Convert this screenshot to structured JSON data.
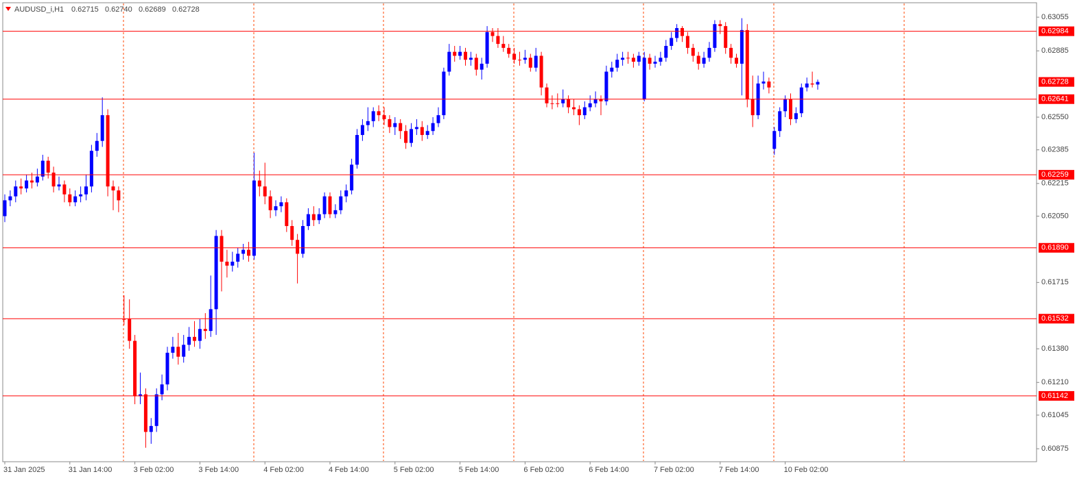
{
  "header": {
    "symbol": "AUDUSD_i,H1",
    "ohlc": [
      "0.62715",
      "0.62740",
      "0.62689",
      "0.62728"
    ]
  },
  "chart_data": {
    "type": "candlestick",
    "up_color": "#0000ff",
    "down_color": "#ff0000",
    "ylim": [
      0.60813,
      0.63128
    ],
    "yticks": [
      0.63055,
      0.62885,
      {
        "value": 0.6255,
        "label": "0.62550"
      },
      0.62385,
      0.62215,
      {
        "value": 0.6205,
        "label": "0.62050"
      },
      0.61715,
      {
        "value": 0.6138,
        "label": "0.61380"
      },
      {
        "value": 0.6121,
        "label": "0.61210"
      },
      0.61045,
      0.60875
    ],
    "levels": [
      0.62984,
      0.62641,
      0.62259,
      {
        "value": 0.6189,
        "label": "0.61890"
      },
      0.61532,
      0.61142
    ],
    "current_price": 0.62728,
    "categories": [
      "31 Jan 2025",
      null,
      null,
      null,
      null,
      null,
      null,
      null,
      null,
      null,
      null,
      null,
      "31 Jan 14:00",
      null,
      null,
      null,
      null,
      null,
      null,
      null,
      null,
      null,
      null,
      null,
      "3 Feb 02:00",
      null,
      null,
      null,
      null,
      null,
      null,
      null,
      null,
      null,
      null,
      null,
      "3 Feb 14:00",
      null,
      null,
      null,
      null,
      null,
      null,
      null,
      null,
      null,
      null,
      null,
      "4 Feb 02:00",
      null,
      null,
      null,
      null,
      null,
      null,
      null,
      null,
      null,
      null,
      null,
      "4 Feb 14:00",
      null,
      null,
      null,
      null,
      null,
      null,
      null,
      null,
      null,
      null,
      null,
      "5 Feb 02:00",
      null,
      null,
      null,
      null,
      null,
      null,
      null,
      null,
      null,
      null,
      null,
      "5 Feb 14:00",
      null,
      null,
      null,
      null,
      null,
      null,
      null,
      null,
      null,
      null,
      null,
      "6 Feb 02:00",
      null,
      null,
      null,
      null,
      null,
      null,
      null,
      null,
      null,
      null,
      null,
      "6 Feb 14:00",
      null,
      null,
      null,
      null,
      null,
      null,
      null,
      null,
      null,
      null,
      null,
      "7 Feb 02:00",
      null,
      null,
      null,
      null,
      null,
      null,
      null,
      null,
      null,
      null,
      null,
      "7 Feb 14:00",
      null,
      null,
      null,
      null,
      null,
      null,
      null,
      null,
      null,
      null,
      null,
      "10 Feb 02:00",
      null,
      null,
      null,
      null,
      null,
      null
    ],
    "candles": [
      [
        0.6205,
        0.6216,
        0.6202,
        0.6213
      ],
      [
        0.6213,
        0.6218,
        0.621,
        0.6215
      ],
      [
        0.6215,
        0.6223,
        0.6212,
        0.622
      ],
      [
        0.622,
        0.6224,
        0.6216,
        0.6219
      ],
      [
        0.6219,
        0.6226,
        0.6217,
        0.6223
      ],
      [
        0.6223,
        0.6227,
        0.6219,
        0.6222
      ],
      [
        0.6222,
        0.6229,
        0.622,
        0.6225
      ],
      [
        0.6225,
        0.6236,
        0.6223,
        0.6233
      ],
      [
        0.6233,
        0.6235,
        0.6224,
        0.6227
      ],
      [
        0.6227,
        0.623,
        0.6217,
        0.622
      ],
      [
        0.622,
        0.6225,
        0.6218,
        0.6221
      ],
      [
        0.6221,
        0.6223,
        0.6212,
        0.6216
      ],
      [
        0.6216,
        0.6219,
        0.621,
        0.6212
      ],
      [
        0.6212,
        0.6218,
        0.621,
        0.6215
      ],
      [
        0.6215,
        0.622,
        0.6212,
        0.6216
      ],
      [
        0.6216,
        0.6226,
        0.6213,
        0.622
      ],
      [
        0.622,
        0.6241,
        0.6217,
        0.6238
      ],
      [
        0.6238,
        0.6247,
        0.6235,
        0.6243
      ],
      [
        0.6243,
        0.6265,
        0.624,
        0.6256
      ],
      [
        0.6256,
        0.6259,
        0.6215,
        0.622
      ],
      [
        0.622,
        0.6223,
        0.6208,
        0.6218
      ],
      [
        0.6218,
        0.622,
        0.6207,
        0.6213
      ],
      [
        0.6153,
        0.6165,
        0.615,
        0.6153
      ],
      [
        0.6153,
        0.6163,
        0.6138,
        0.6142
      ],
      [
        0.6142,
        0.6145,
        0.611,
        0.6114
      ],
      [
        0.6114,
        0.6126,
        0.611,
        0.6115
      ],
      [
        0.6115,
        0.6118,
        0.6088,
        0.6096
      ],
      [
        0.6096,
        0.6103,
        0.609,
        0.6099
      ],
      [
        0.6099,
        0.6118,
        0.6096,
        0.6115
      ],
      [
        0.6115,
        0.6125,
        0.6112,
        0.612
      ],
      [
        0.612,
        0.6139,
        0.6117,
        0.6136
      ],
      [
        0.6136,
        0.6144,
        0.6133,
        0.6139
      ],
      [
        0.6139,
        0.6146,
        0.613,
        0.6134
      ],
      [
        0.6134,
        0.6145,
        0.6131,
        0.614
      ],
      [
        0.614,
        0.6149,
        0.6137,
        0.6144
      ],
      [
        0.6144,
        0.6152,
        0.6139,
        0.6142
      ],
      [
        0.6142,
        0.6153,
        0.6138,
        0.6148
      ],
      [
        0.6148,
        0.6156,
        0.6143,
        0.6147
      ],
      [
        0.6147,
        0.6175,
        0.6144,
        0.6158
      ],
      [
        0.6158,
        0.6198,
        0.6145,
        0.6195
      ],
      [
        0.6195,
        0.6198,
        0.6167,
        0.6182
      ],
      [
        0.6182,
        0.6188,
        0.6174,
        0.618
      ],
      [
        0.618,
        0.6187,
        0.6177,
        0.6182
      ],
      [
        0.6182,
        0.6189,
        0.6179,
        0.6186
      ],
      [
        0.6186,
        0.6191,
        0.6183,
        0.6188
      ],
      [
        0.6188,
        0.6192,
        0.6182,
        0.6185
      ],
      [
        0.6185,
        0.6237,
        0.6183,
        0.6223
      ],
      [
        0.6223,
        0.6228,
        0.6215,
        0.622
      ],
      [
        0.622,
        0.6232,
        0.6211,
        0.6215
      ],
      [
        0.6215,
        0.6218,
        0.6204,
        0.6208
      ],
      [
        0.6208,
        0.6213,
        0.6205,
        0.621
      ],
      [
        0.621,
        0.6215,
        0.6207,
        0.6212
      ],
      [
        0.6212,
        0.6214,
        0.6197,
        0.62
      ],
      [
        0.62,
        0.6203,
        0.619,
        0.6193
      ],
      [
        0.6193,
        0.6196,
        0.6171,
        0.6186
      ],
      [
        0.6186,
        0.6203,
        0.6184,
        0.62
      ],
      [
        0.62,
        0.6209,
        0.6198,
        0.6206
      ],
      [
        0.6206,
        0.621,
        0.62,
        0.6203
      ],
      [
        0.6203,
        0.6209,
        0.6201,
        0.6206
      ],
      [
        0.6206,
        0.6217,
        0.6204,
        0.6215
      ],
      [
        0.6215,
        0.6217,
        0.6204,
        0.6206
      ],
      [
        0.6206,
        0.6211,
        0.6204,
        0.6208
      ],
      [
        0.6208,
        0.6218,
        0.6206,
        0.6215
      ],
      [
        0.6215,
        0.6221,
        0.6212,
        0.6218
      ],
      [
        0.6218,
        0.6234,
        0.6216,
        0.6231
      ],
      [
        0.6231,
        0.6249,
        0.6229,
        0.6246
      ],
      [
        0.6246,
        0.6254,
        0.6243,
        0.6251
      ],
      [
        0.6251,
        0.626,
        0.6248,
        0.6253
      ],
      [
        0.6253,
        0.626,
        0.625,
        0.6258
      ],
      [
        0.6258,
        0.6261,
        0.6253,
        0.6256
      ],
      [
        0.6256,
        0.626,
        0.6251,
        0.6254
      ],
      [
        0.6254,
        0.6256,
        0.6247,
        0.625
      ],
      [
        0.625,
        0.6255,
        0.6246,
        0.6252
      ],
      [
        0.6252,
        0.6254,
        0.6244,
        0.6248
      ],
      [
        0.6248,
        0.6251,
        0.6239,
        0.6242
      ],
      [
        0.6242,
        0.6252,
        0.624,
        0.6249
      ],
      [
        0.6249,
        0.6254,
        0.6246,
        0.625
      ],
      [
        0.625,
        0.6253,
        0.6243,
        0.6246
      ],
      [
        0.6246,
        0.6251,
        0.6244,
        0.6248
      ],
      [
        0.6248,
        0.6255,
        0.6246,
        0.6252
      ],
      [
        0.6252,
        0.626,
        0.625,
        0.6256
      ],
      [
        0.6256,
        0.628,
        0.6254,
        0.6278
      ],
      [
        0.6278,
        0.6292,
        0.6276,
        0.6288
      ],
      [
        0.6288,
        0.6291,
        0.6283,
        0.6286
      ],
      [
        0.6286,
        0.6291,
        0.6284,
        0.6288
      ],
      [
        0.6288,
        0.629,
        0.6281,
        0.6284
      ],
      [
        0.6284,
        0.6288,
        0.6281,
        0.6285
      ],
      [
        0.6285,
        0.6287,
        0.6276,
        0.6279
      ],
      [
        0.6279,
        0.6285,
        0.6274,
        0.6282
      ],
      [
        0.6282,
        0.6301,
        0.628,
        0.6298
      ],
      [
        0.6298,
        0.63,
        0.6293,
        0.6296
      ],
      [
        0.6296,
        0.63,
        0.629,
        0.6292
      ],
      [
        0.6292,
        0.6296,
        0.6288,
        0.629
      ],
      [
        0.629,
        0.6292,
        0.6285,
        0.6287
      ],
      [
        0.6287,
        0.629,
        0.6282,
        0.6284
      ],
      [
        0.6284,
        0.6288,
        0.6281,
        0.6284
      ],
      [
        0.6284,
        0.6289,
        0.6282,
        0.6285
      ],
      [
        0.6285,
        0.6287,
        0.6278,
        0.628
      ],
      [
        0.628,
        0.629,
        0.6278,
        0.6286
      ],
      [
        0.6286,
        0.6288,
        0.6266,
        0.627
      ],
      [
        0.627,
        0.6272,
        0.626,
        0.6262
      ],
      [
        0.6262,
        0.6266,
        0.6259,
        0.6262
      ],
      [
        0.6262,
        0.6267,
        0.626,
        0.6262
      ],
      [
        0.6262,
        0.6269,
        0.626,
        0.6264
      ],
      [
        0.6264,
        0.6266,
        0.6257,
        0.626
      ],
      [
        0.626,
        0.6264,
        0.6256,
        0.6259
      ],
      [
        0.6259,
        0.6261,
        0.6251,
        0.6256
      ],
      [
        0.6256,
        0.6263,
        0.6254,
        0.626
      ],
      [
        0.626,
        0.6266,
        0.6258,
        0.6262
      ],
      [
        0.6262,
        0.6268,
        0.626,
        0.6264
      ],
      [
        0.6264,
        0.6266,
        0.6256,
        0.6263
      ],
      [
        0.6263,
        0.6281,
        0.6261,
        0.6278
      ],
      [
        0.6278,
        0.6283,
        0.6275,
        0.628
      ],
      [
        0.628,
        0.6287,
        0.6278,
        0.6284
      ],
      [
        0.6284,
        0.6288,
        0.6281,
        0.6285
      ],
      [
        0.6285,
        0.6288,
        0.6282,
        0.6285
      ],
      [
        0.6285,
        0.6287,
        0.628,
        0.6283
      ],
      [
        0.6283,
        0.6288,
        0.6281,
        0.6286
      ],
      [
        0.6264,
        0.6288,
        0.6263,
        0.6285
      ],
      [
        0.6285,
        0.6287,
        0.6279,
        0.6282
      ],
      [
        0.6282,
        0.6286,
        0.628,
        0.6283
      ],
      [
        0.6283,
        0.6288,
        0.6281,
        0.6285
      ],
      [
        0.6285,
        0.6294,
        0.6283,
        0.6291
      ],
      [
        0.6291,
        0.6298,
        0.6289,
        0.6295
      ],
      [
        0.6295,
        0.6302,
        0.6293,
        0.63
      ],
      [
        0.63,
        0.6301,
        0.6293,
        0.6296
      ],
      [
        0.6296,
        0.6298,
        0.6287,
        0.629
      ],
      [
        0.629,
        0.6292,
        0.6283,
        0.6286
      ],
      [
        0.6286,
        0.6288,
        0.6279,
        0.6282
      ],
      [
        0.6282,
        0.6288,
        0.628,
        0.6285
      ],
      [
        0.6285,
        0.6293,
        0.6283,
        0.629
      ],
      [
        0.629,
        0.6304,
        0.6288,
        0.6302
      ],
      [
        0.6302,
        0.6304,
        0.6297,
        0.6301
      ],
      [
        0.6301,
        0.6303,
        0.6287,
        0.629
      ],
      [
        0.629,
        0.6292,
        0.6282,
        0.6285
      ],
      [
        0.6285,
        0.6287,
        0.628,
        0.6282
      ],
      [
        0.6282,
        0.6305,
        0.6266,
        0.6299
      ],
      [
        0.6299,
        0.6302,
        0.626,
        0.6264
      ],
      [
        0.6264,
        0.6276,
        0.625,
        0.6256
      ],
      [
        0.6256,
        0.6276,
        0.6254,
        0.6272
      ],
      [
        0.6272,
        0.6278,
        0.6269,
        0.6273
      ],
      [
        0.6273,
        0.6275,
        0.6267,
        0.627
      ],
      [
        0.6239,
        0.625,
        0.6236,
        0.6248
      ],
      [
        0.6248,
        0.626,
        0.6245,
        0.6258
      ],
      [
        0.6258,
        0.6266,
        0.6255,
        0.6264
      ],
      [
        0.6264,
        0.6267,
        0.6251,
        0.6254
      ],
      [
        0.6254,
        0.626,
        0.6252,
        0.6257
      ],
      [
        0.6257,
        0.6272,
        0.6255,
        0.627
      ],
      [
        0.627,
        0.6275,
        0.6268,
        0.6272
      ],
      [
        0.6272,
        0.6278,
        0.627,
        0.62715
      ],
      [
        0.62715,
        0.6274,
        0.62689,
        0.62728
      ]
    ]
  }
}
